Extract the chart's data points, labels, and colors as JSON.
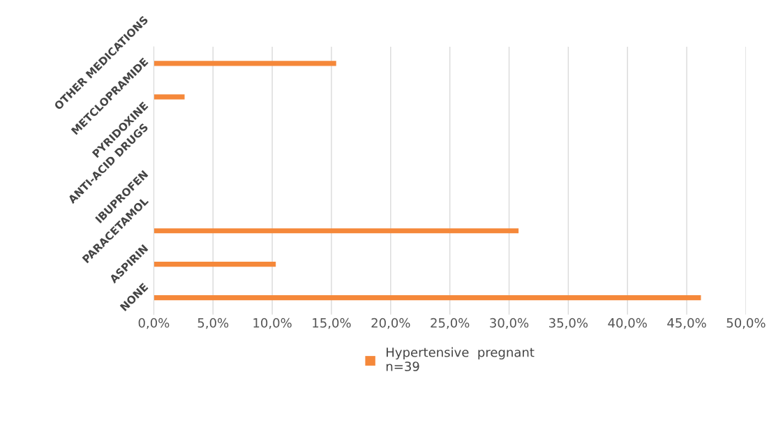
{
  "chart_data": {
    "type": "bar",
    "orientation": "horizontal",
    "categories": [
      "OTHER MEDICATIONS",
      "METCLOPRAMIDE",
      "PYRIDOXINE",
      "ANTI-ACID DRUGS",
      "IBUPROFEN",
      "PARACETAMOL",
      "ASPIRIN",
      "NONE"
    ],
    "series": [
      {
        "name": "Hypertensive  pregnant\nn=39",
        "color": "#f5883a",
        "values": [
          15.4,
          2.6,
          0,
          0,
          0,
          30.8,
          10.3,
          46.2
        ]
      }
    ],
    "xlim": [
      0,
      50
    ],
    "xticks": [
      {
        "value": 0,
        "label": "0,0%"
      },
      {
        "value": 5,
        "label": "5,0%"
      },
      {
        "value": 10,
        "label": "10,0%"
      },
      {
        "value": 15,
        "label": "15,0%"
      },
      {
        "value": 20,
        "label": "20,0%"
      },
      {
        "value": 25,
        "label": "25,0%"
      },
      {
        "value": 30,
        "label": "30,0%"
      },
      {
        "value": 35,
        "label": "35,0%"
      },
      {
        "value": 40,
        "label": "40,0%"
      },
      {
        "value": 45,
        "label": "45,0%"
      },
      {
        "value": 50,
        "label": "50,0%"
      }
    ],
    "grid": "x",
    "legend": "bottom"
  }
}
